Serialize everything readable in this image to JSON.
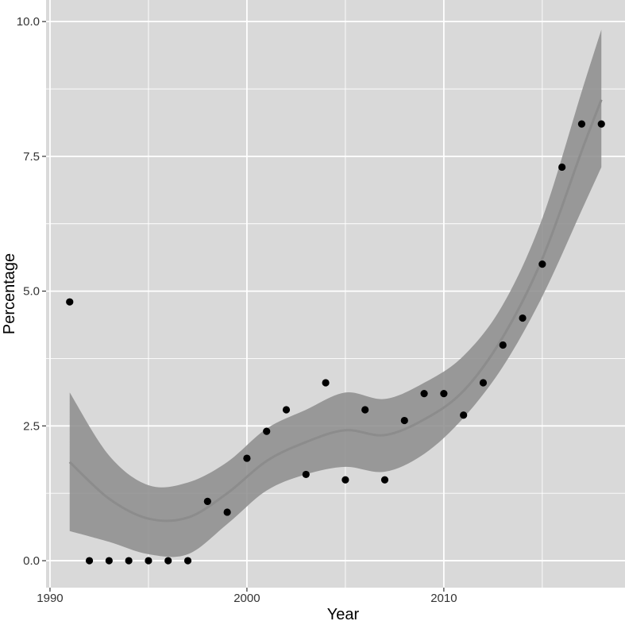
{
  "chart_data": {
    "type": "scatter",
    "title": "",
    "xlabel": "Year",
    "ylabel": "Percentage",
    "xlim": [
      1989.8,
      2019.2
    ],
    "ylim": [
      -0.5,
      10.4
    ],
    "x_ticks": [
      1990,
      2000,
      2010
    ],
    "x_tick_labels": [
      "1990",
      "2000",
      "2010"
    ],
    "y_ticks": [
      0,
      2.5,
      5,
      7.5,
      10
    ],
    "y_tick_labels": [
      "0.0",
      "2.5",
      "5.0",
      "7.5",
      "10.0"
    ],
    "grid": true,
    "background_color": "#d9d9d9",
    "grid_color": "#ffffff",
    "point_color": "#000000",
    "trend_color": "#8c8c8c",
    "band_color": "#8c8c8c",
    "points": {
      "x": [
        1991,
        1992,
        1993,
        1994,
        1995,
        1996,
        1997,
        1998,
        1999,
        2000,
        2001,
        2002,
        2003,
        2004,
        2005,
        2006,
        2007,
        2008,
        2009,
        2010,
        2011,
        2012,
        2013,
        2014,
        2015,
        2016,
        2017,
        2018
      ],
      "y": [
        4.8,
        0.0,
        0.0,
        0.0,
        0.0,
        0.0,
        0.0,
        1.1,
        0.9,
        1.9,
        2.4,
        2.8,
        1.6,
        3.3,
        1.5,
        2.8,
        1.5,
        2.6,
        3.1,
        3.1,
        2.7,
        3.3,
        4.0,
        4.5,
        5.5,
        7.3,
        8.1,
        8.1
      ]
    },
    "smooth": {
      "x": [
        1991,
        1993,
        1995,
        1997,
        1999,
        2001,
        2003,
        2005,
        2007,
        2009,
        2011,
        2013,
        2015,
        2017,
        2018
      ],
      "y": [
        1.83,
        1.15,
        0.78,
        0.8,
        1.25,
        1.85,
        2.2,
        2.42,
        2.33,
        2.62,
        3.15,
        4.15,
        5.6,
        7.6,
        8.55
      ],
      "lower": [
        0.55,
        0.35,
        0.12,
        0.12,
        0.68,
        1.3,
        1.6,
        1.74,
        1.65,
        1.98,
        2.65,
        3.6,
        4.9,
        6.5,
        7.3
      ],
      "upper": [
        3.12,
        1.95,
        1.4,
        1.45,
        1.83,
        2.45,
        2.8,
        3.12,
        3.0,
        3.3,
        3.8,
        4.75,
        6.35,
        8.7,
        9.85
      ]
    }
  }
}
